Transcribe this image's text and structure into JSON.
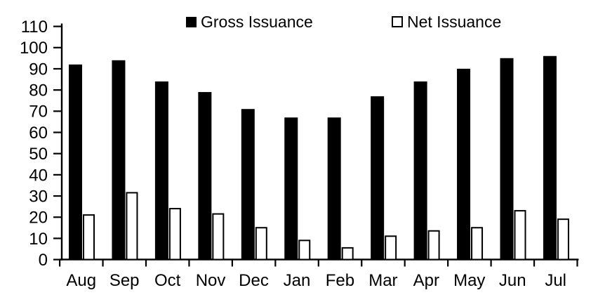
{
  "chart_data": {
    "type": "bar",
    "title": "",
    "xlabel": "",
    "ylabel": "",
    "categories": [
      "Aug",
      "Sep",
      "Oct",
      "Nov",
      "Dec",
      "Jan",
      "Feb",
      "Mar",
      "Apr",
      "May",
      "Jun",
      "Jul"
    ],
    "series": [
      {
        "name": "Gross Issuance",
        "values": [
          92,
          94,
          84,
          79,
          71,
          67,
          67,
          77,
          84,
          90,
          95,
          96
        ],
        "fill": "#000000",
        "stroke": "#000000"
      },
      {
        "name": "Net Issuance",
        "values": [
          21,
          31.5,
          24,
          21.5,
          15,
          9,
          5.5,
          11,
          13.5,
          15,
          23,
          19
        ],
        "fill": "#ffffff",
        "stroke": "#000000"
      }
    ],
    "ylim": [
      0,
      110
    ],
    "yticks": [
      0,
      10,
      20,
      30,
      40,
      50,
      60,
      70,
      80,
      90,
      100,
      110
    ],
    "grid": false,
    "legend_position": "top"
  },
  "legend": {
    "items": [
      {
        "label": "Gross Issuance",
        "swatch": "filled-black"
      },
      {
        "label": "Net Issuance",
        "swatch": "outlined-white"
      }
    ]
  },
  "colors": {
    "background": "#ffffff",
    "axis": "#000000",
    "text": "#000000",
    "gross_fill": "#000000",
    "net_fill": "#ffffff",
    "net_stroke": "#000000"
  }
}
